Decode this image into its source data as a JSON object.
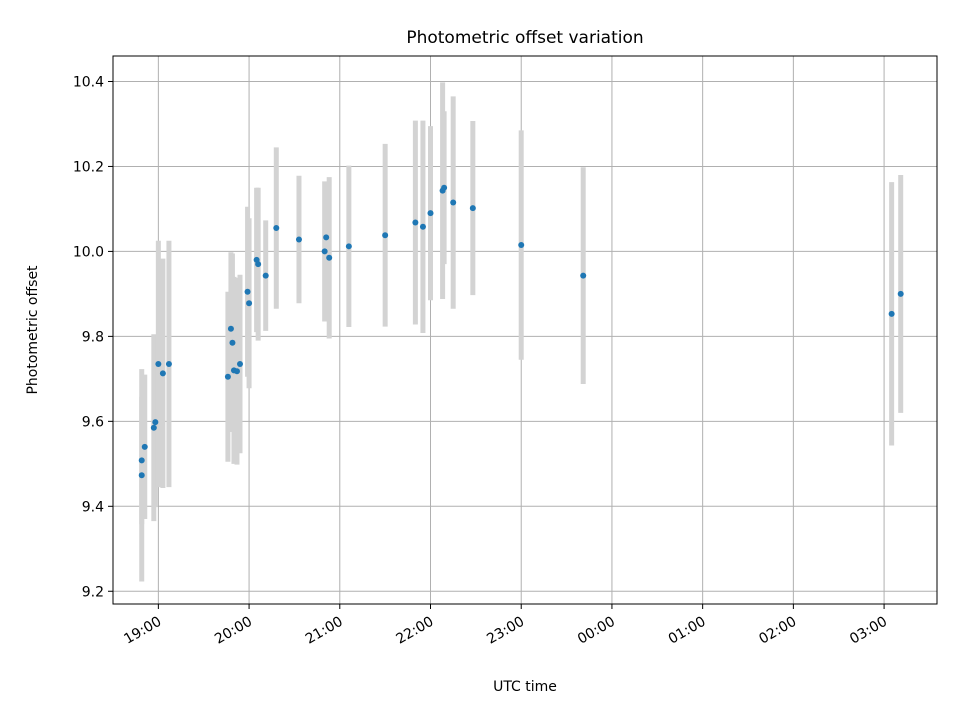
{
  "chart_data": {
    "type": "scatter",
    "title": "Photometric offset variation",
    "xlabel": "UTC time",
    "ylabel": "Photometric offset",
    "x_range": [
      "18:30",
      "03:35"
    ],
    "ylim": [
      9.17,
      10.46
    ],
    "grid": true,
    "legend": "none",
    "colors": {
      "point": "#1f77b4",
      "errorbar": "#d3d3d3",
      "grid": "#b0b0b0"
    },
    "x_ticks": [
      "19:00",
      "20:00",
      "21:00",
      "22:00",
      "23:00",
      "00:00",
      "01:00",
      "02:00",
      "03:00"
    ],
    "y_ticks": [
      "9.2",
      "9.4",
      "9.6",
      "9.8",
      "10.0",
      "10.2",
      "10.4"
    ],
    "points": [
      {
        "t": "18:49",
        "y": 9.508,
        "err": 0.15
      },
      {
        "t": "18:49",
        "y": 9.473,
        "err": 0.25
      },
      {
        "t": "18:51",
        "y": 9.54,
        "err": 0.17
      },
      {
        "t": "18:57",
        "y": 9.585,
        "err": 0.22
      },
      {
        "t": "18:58",
        "y": 9.598,
        "err": 0.2
      },
      {
        "t": "19:00",
        "y": 9.735,
        "err": 0.29
      },
      {
        "t": "19:03",
        "y": 9.713,
        "err": 0.27
      },
      {
        "t": "19:07",
        "y": 9.735,
        "err": 0.29
      },
      {
        "t": "19:46",
        "y": 9.705,
        "err": 0.2
      },
      {
        "t": "19:48",
        "y": 9.818,
        "err": 0.18
      },
      {
        "t": "19:49",
        "y": 9.785,
        "err": 0.21
      },
      {
        "t": "19:50",
        "y": 9.72,
        "err": 0.22
      },
      {
        "t": "19:52",
        "y": 9.718,
        "err": 0.22
      },
      {
        "t": "19:54",
        "y": 9.735,
        "err": 0.21
      },
      {
        "t": "19:59",
        "y": 9.905,
        "err": 0.2
      },
      {
        "t": "20:00",
        "y": 9.878,
        "err": 0.2
      },
      {
        "t": "20:05",
        "y": 9.98,
        "err": 0.17
      },
      {
        "t": "20:06",
        "y": 9.97,
        "err": 0.18
      },
      {
        "t": "20:11",
        "y": 9.943,
        "err": 0.13
      },
      {
        "t": "20:18",
        "y": 10.055,
        "err": 0.19
      },
      {
        "t": "20:33",
        "y": 10.028,
        "err": 0.15
      },
      {
        "t": "20:50",
        "y": 10.0,
        "err": 0.165
      },
      {
        "t": "20:51",
        "y": 10.033,
        "err": 0.13
      },
      {
        "t": "20:53",
        "y": 9.985,
        "err": 0.19
      },
      {
        "t": "21:06",
        "y": 10.012,
        "err": 0.19
      },
      {
        "t": "21:30",
        "y": 10.038,
        "err": 0.215
      },
      {
        "t": "21:50",
        "y": 10.068,
        "err": 0.24
      },
      {
        "t": "21:55",
        "y": 10.058,
        "err": 0.25
      },
      {
        "t": "22:00",
        "y": 10.09,
        "err": 0.205
      },
      {
        "t": "22:08",
        "y": 10.143,
        "err": 0.255
      },
      {
        "t": "22:09",
        "y": 10.15,
        "err": 0.18
      },
      {
        "t": "22:15",
        "y": 10.115,
        "err": 0.25
      },
      {
        "t": "22:28",
        "y": 10.102,
        "err": 0.205
      },
      {
        "t": "23:00",
        "y": 10.015,
        "err": 0.27
      },
      {
        "t": "23:41",
        "y": 9.943,
        "err": 0.255
      },
      {
        "t": "03:05",
        "y": 9.853,
        "err": 0.31
      },
      {
        "t": "03:11",
        "y": 9.9,
        "err": 0.28
      }
    ]
  }
}
